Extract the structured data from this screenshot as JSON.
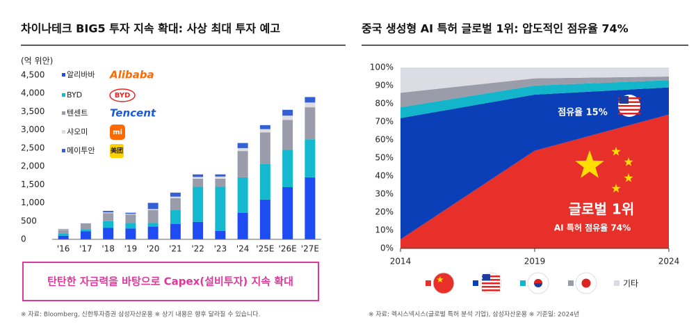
{
  "chart_data": [
    {
      "type": "bar",
      "stacked": true,
      "title": "차이나테크 BIG5 투자 지속 확대: 사상 최대 투자 예고",
      "y_unit": "(억 위안)",
      "categories": [
        "'16",
        "'17",
        "'18",
        "'19",
        "'20",
        "'21",
        "'22",
        "'23",
        "'24",
        "'25E",
        "'26E",
        "'27E"
      ],
      "series": [
        {
          "name": "알리바바",
          "logo": "Alibaba",
          "color": "#1f4cf2",
          "values": [
            100,
            220,
            320,
            300,
            350,
            420,
            480,
            230,
            730,
            1090,
            1430,
            1700
          ]
        },
        {
          "name": "BYD",
          "logo": "BYD",
          "color": "#14b9cf",
          "values": [
            60,
            60,
            180,
            150,
            100,
            380,
            960,
            1210,
            970,
            970,
            1020,
            1040
          ]
        },
        {
          "name": "텐센트",
          "logo": "Tencent",
          "color": "#9b9caa",
          "values": [
            100,
            140,
            220,
            230,
            350,
            330,
            220,
            220,
            720,
            870,
            820,
            880
          ]
        },
        {
          "name": "샤오미",
          "logo": "mi",
          "color": "#dcdce4",
          "values": [
            10,
            10,
            20,
            20,
            30,
            40,
            50,
            60,
            80,
            90,
            120,
            130
          ]
        },
        {
          "name": "메이투안",
          "logo": "美团",
          "color": "#3560d4",
          "values": [
            10,
            10,
            40,
            30,
            170,
            110,
            70,
            60,
            140,
            110,
            160,
            150
          ]
        }
      ],
      "ylim": [
        0,
        4500
      ],
      "yticks": [
        0,
        500,
        {
          "value": 1000,
          "label": "1,000"
        },
        {
          "value": 1500,
          "label": "1,500"
        },
        {
          "value": 2000,
          "label": "2,000"
        },
        {
          "value": 2500,
          "label": "2,500"
        },
        {
          "value": 3000,
          "label": "3,000"
        },
        {
          "value": 3500,
          "label": "3,500"
        },
        {
          "value": 4000,
          "label": "4,000"
        },
        {
          "value": 4500,
          "label": "4,500"
        }
      ],
      "callout": "탄탄한 자금력을 바탕으로 Capex(설비투자) 지속 확대",
      "source": "※ 자료: Bloomberg, 신한투자증권 삼성자산운용 ※ 상기 내용은 향후 달라질 수 있습니다."
    },
    {
      "type": "area",
      "stacked": true,
      "title": "중국 생성형 AI 특허 글로벌 1위: 압도적인 점유율 74%",
      "x": [
        2014,
        2019,
        2024
      ],
      "xlim": [
        2014,
        2024
      ],
      "xticks": [
        2014,
        2019,
        2024
      ],
      "series": [
        {
          "color": "#e8302a",
          "values": [
            5,
            54,
            74
          ]
        },
        {
          "color": "#0b3fb8",
          "values": [
            67,
            31,
            15
          ]
        },
        {
          "color": "#12b5c9",
          "values": [
            6,
            5,
            4
          ]
        },
        {
          "color": "#9b9caa",
          "values": [
            8,
            4,
            2
          ]
        },
        {
          "name": "기타",
          "color": "#dcdce4",
          "values": [
            14,
            6,
            5
          ]
        }
      ],
      "ylim": [
        0,
        100
      ],
      "yticks": [
        {
          "value": 0,
          "label": "0%"
        },
        {
          "value": 10,
          "label": "10%"
        },
        {
          "value": 20,
          "label": "20%"
        },
        {
          "value": 30,
          "label": "30%"
        },
        {
          "value": 40,
          "label": "40%"
        },
        {
          "value": 50,
          "label": "50%"
        },
        {
          "value": 60,
          "label": "60%"
        },
        {
          "value": 70,
          "label": "70%"
        },
        {
          "value": 80,
          "label": "80%"
        },
        {
          "value": 90,
          "label": "90%"
        },
        {
          "value": 100,
          "label": "100%"
        }
      ],
      "annotations": [
        "점유율 15%",
        "글로벌 1위",
        "AI 특허 점유율 74%"
      ],
      "source": "※ 자료: 렉시스넥시스(글로벌 특허 분석 기업), 삼성자산운용 ※ 기준일: 2024년"
    }
  ]
}
